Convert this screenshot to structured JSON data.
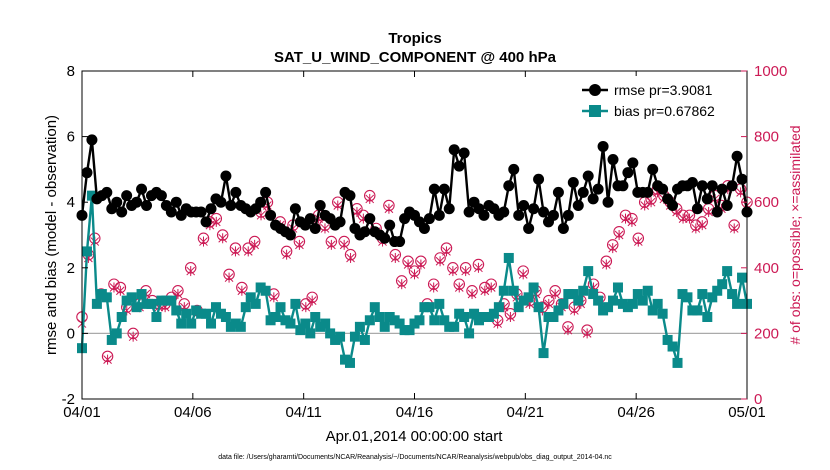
{
  "chart_data": {
    "type": "line",
    "title": "Tropics",
    "subtitle": "SAT_U_WIND_COMPONENT @ 400 hPa",
    "xlabel": "Apr.01,2014 00:00:00 start",
    "ylabel": "rmse and bias (model - observation)",
    "ylabel_right": "# of obs: o=possible; ×=assimilated",
    "footnote": "data file: /Users/gharamti/Documents/NCAR/Reanalysis/~/Documents/NCAR/Reanalysis/webpub/obs_diag_output_2014-04.nc",
    "x_range_days": [
      0,
      30
    ],
    "x_ticks": [
      0,
      5,
      10,
      15,
      20,
      25,
      30
    ],
    "x_tick_labels": [
      "04/01",
      "04/06",
      "04/11",
      "04/16",
      "04/21",
      "04/26",
      "05/01"
    ],
    "ylim": [
      -2,
      8
    ],
    "y_ticks": [
      -2,
      0,
      2,
      4,
      6,
      8
    ],
    "y_tick_labels": [
      "-2",
      "0",
      "2",
      "4",
      "6",
      "8"
    ],
    "ylim_right": [
      0,
      1000
    ],
    "y_ticks_right": [
      0,
      200,
      400,
      600,
      800,
      1000
    ],
    "y_tick_labels_right": [
      "0",
      "200",
      "400",
      "600",
      "800",
      "1000"
    ],
    "series": [
      {
        "name": "rmse",
        "legend": "rmse pr=3.9081",
        "color": "#000000",
        "axis": "left",
        "values": [
          3.6,
          4.9,
          5.9,
          4.1,
          4.2,
          4.3,
          3.8,
          4.0,
          3.7,
          4.2,
          3.9,
          4.0,
          4.4,
          3.9,
          4.2,
          4.3,
          4.2,
          3.9,
          3.7,
          4.0,
          3.6,
          3.8,
          3.7,
          3.7,
          3.7,
          3.4,
          3.8,
          4.1,
          4.0,
          4.8,
          3.9,
          4.3,
          3.9,
          3.8,
          3.7,
          3.8,
          4.0,
          4.3,
          3.6,
          3.3,
          3.2,
          3.1,
          3.0,
          3.8,
          3.4,
          3.3,
          3.5,
          3.2,
          3.9,
          3.6,
          3.5,
          3.3,
          3.4,
          4.3,
          4.2,
          3.2,
          3.0,
          3.1,
          3.5,
          3.1,
          3.0,
          2.9,
          3.3,
          2.8,
          2.8,
          3.5,
          3.7,
          3.6,
          3.4,
          3.2,
          3.5,
          4.4,
          3.6,
          4.4,
          3.8,
          5.6,
          5.1,
          5.5,
          3.7,
          4.0,
          3.8,
          3.6,
          3.9,
          3.8,
          3.6,
          3.7,
          4.5,
          5.0,
          3.6,
          3.9,
          3.2,
          3.8,
          4.7,
          3.7,
          3.4,
          3.6,
          4.3,
          3.2,
          3.6,
          4.6,
          3.9,
          4.3,
          4.8,
          4.1,
          4.4,
          5.7,
          4.0,
          5.3,
          4.5,
          4.5,
          4.9,
          5.2,
          4.3,
          4.3,
          4.3,
          5.0,
          4.5,
          4.4,
          4.1,
          3.9,
          4.4,
          4.5,
          4.5,
          4.6,
          3.8,
          4.5,
          4.1,
          4.5,
          3.7,
          4.4,
          3.9,
          4.5,
          5.4,
          4.7,
          3.7
        ]
      },
      {
        "name": "bias",
        "legend": "bias pr=0.67862",
        "color": "#0a8a8a",
        "axis": "left",
        "values": [
          -0.45,
          2.5,
          4.2,
          0.9,
          1.2,
          1.1,
          -0.2,
          0.0,
          0.5,
          1.0,
          1.1,
          0.8,
          1.2,
          0.9,
          0.9,
          0.5,
          1.0,
          1.0,
          1.0,
          0.7,
          0.3,
          0.6,
          0.3,
          0.7,
          0.6,
          0.6,
          0.3,
          0.8,
          0.6,
          0.5,
          0.2,
          0.3,
          0.2,
          0.8,
          1.1,
          0.9,
          1.4,
          1.3,
          0.4,
          0.5,
          0.8,
          0.4,
          0.3,
          0.9,
          0.1,
          0.3,
          0.0,
          0.5,
          0.2,
          0.3,
          0.0,
          -0.2,
          -0.1,
          -0.8,
          -0.9,
          -0.1,
          0.2,
          -0.2,
          0.4,
          0.8,
          0.5,
          0.2,
          0.5,
          0.4,
          0.3,
          0.1,
          0.1,
          0.3,
          0.4,
          0.8,
          0.8,
          0.4,
          0.9,
          0.4,
          0.2,
          0.2,
          0.6,
          0.5,
          0.0,
          0.6,
          0.4,
          0.5,
          0.5,
          0.6,
          0.8,
          1.3,
          2.3,
          1.3,
          0.8,
          1.0,
          1.1,
          1.4,
          0.8,
          -0.6,
          0.5,
          0.5,
          0.7,
          0.9,
          1.2,
          1.2,
          1.0,
          1.3,
          1.9,
          1.2,
          1.0,
          0.7,
          0.8,
          1.0,
          1.4,
          0.9,
          0.8,
          0.9,
          1.2,
          1.0,
          1.3,
          0.7,
          0.9,
          0.6,
          -0.2,
          -0.4,
          -0.9,
          1.2,
          1.1,
          0.7,
          0.7,
          1.2,
          0.5,
          1.1,
          1.3,
          1.5,
          1.9,
          1.2,
          0.9,
          1.7,
          0.9
        ]
      },
      {
        "name": "# of obs possible",
        "marker": "o",
        "color": "#cc1a55",
        "axis": "right",
        "values": [
          250,
          440,
          490,
          320,
          130,
          350,
          340,
          280,
          200,
          290,
          330,
          300,
          290,
          290,
          310,
          330,
          290,
          400,
          270,
          490,
          540,
          550,
          500,
          380,
          460,
          340,
          460,
          480,
          570,
          600,
          320,
          540,
          450,
          530,
          480,
          290,
          310,
          560,
          530,
          480,
          600,
          480,
          440,
          580,
          560,
          620,
          520,
          490,
          590,
          440,
          360,
          420,
          390,
          420,
          290,
          350,
          430,
          460,
          400,
          350,
          400,
          330,
          410,
          340,
          350,
          240,
          290,
          260,
          320,
          390,
          300,
          330,
          280,
          300,
          330,
          290,
          220,
          280,
          300,
          210,
          350,
          310,
          420,
          470,
          510,
          560,
          550,
          490,
          600,
          610,
          640,
          620,
          600,
          580,
          560,
          560,
          530,
          540,
          580,
          620,
          590,
          650,
          530,
          640,
          600
        ]
      },
      {
        "name": "# of obs assimilated",
        "marker": "x",
        "color": "#cc1a55",
        "axis": "right",
        "values": [
          230,
          430,
          480,
          310,
          120,
          340,
          330,
          270,
          190,
          280,
          320,
          290,
          280,
          280,
          300,
          320,
          280,
          390,
          260,
          480,
          530,
          540,
          490,
          370,
          450,
          330,
          450,
          470,
          560,
          590,
          310,
          530,
          440,
          520,
          470,
          280,
          300,
          550,
          520,
          470,
          590,
          470,
          430,
          570,
          550,
          610,
          510,
          480,
          580,
          430,
          350,
          410,
          380,
          410,
          280,
          340,
          420,
          450,
          390,
          340,
          390,
          320,
          400,
          330,
          340,
          230,
          280,
          250,
          310,
          380,
          290,
          320,
          270,
          290,
          320,
          280,
          210,
          270,
          290,
          200,
          340,
          300,
          410,
          460,
          500,
          550,
          540,
          480,
          590,
          600,
          630,
          610,
          590,
          570,
          550,
          550,
          520,
          530,
          570,
          610,
          580,
          640,
          520,
          630,
          590
        ]
      }
    ],
    "legend_position": "top-right",
    "grid": false
  }
}
